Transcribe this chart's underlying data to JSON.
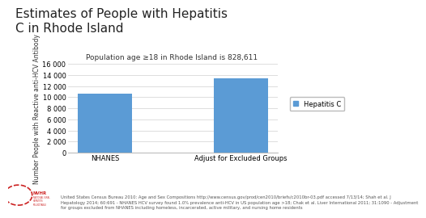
{
  "title": "Estimates of People with Hepatitis\nC in Rhode Island",
  "subtitle": "Population age ≥18 in Rhode Island is 828,611",
  "categories": [
    "NHANES",
    "Adjust for Excluded Groups"
  ],
  "values": [
    10700,
    13400
  ],
  "bar_color": "#5b9bd5",
  "legend_label": "Hepatitis C",
  "ylabel": "Number People with Reactive anti-HCV Antibody",
  "ylim": [
    0,
    16000
  ],
  "yticks": [
    0,
    2000,
    4000,
    6000,
    8000,
    10000,
    12000,
    14000,
    16000
  ],
  "footer_line1": "United States Census Bureau 2010: Age and Sex Compositions http://www.census.gov/prod/cen2010/briefs/c2010br-03.pdf accessed 7/13/14; Shah et al. J",
  "footer_line2": "Hepatology 2014; 60:691 - NHANES HCV survey found 1.0% prevalence anti-HCV in US population age >18; Chak et al. Liver International 2011; 31:1090 - Adjustment",
  "footer_line3": "for groups excluded from NHANES including homeless, incarcerated, active military, and nursing home residents",
  "background_color": "#ffffff",
  "title_fontsize": 11,
  "subtitle_fontsize": 6.5,
  "tick_fontsize": 6,
  "ylabel_fontsize": 5.5,
  "footer_fontsize": 3.8,
  "legend_fontsize": 6
}
